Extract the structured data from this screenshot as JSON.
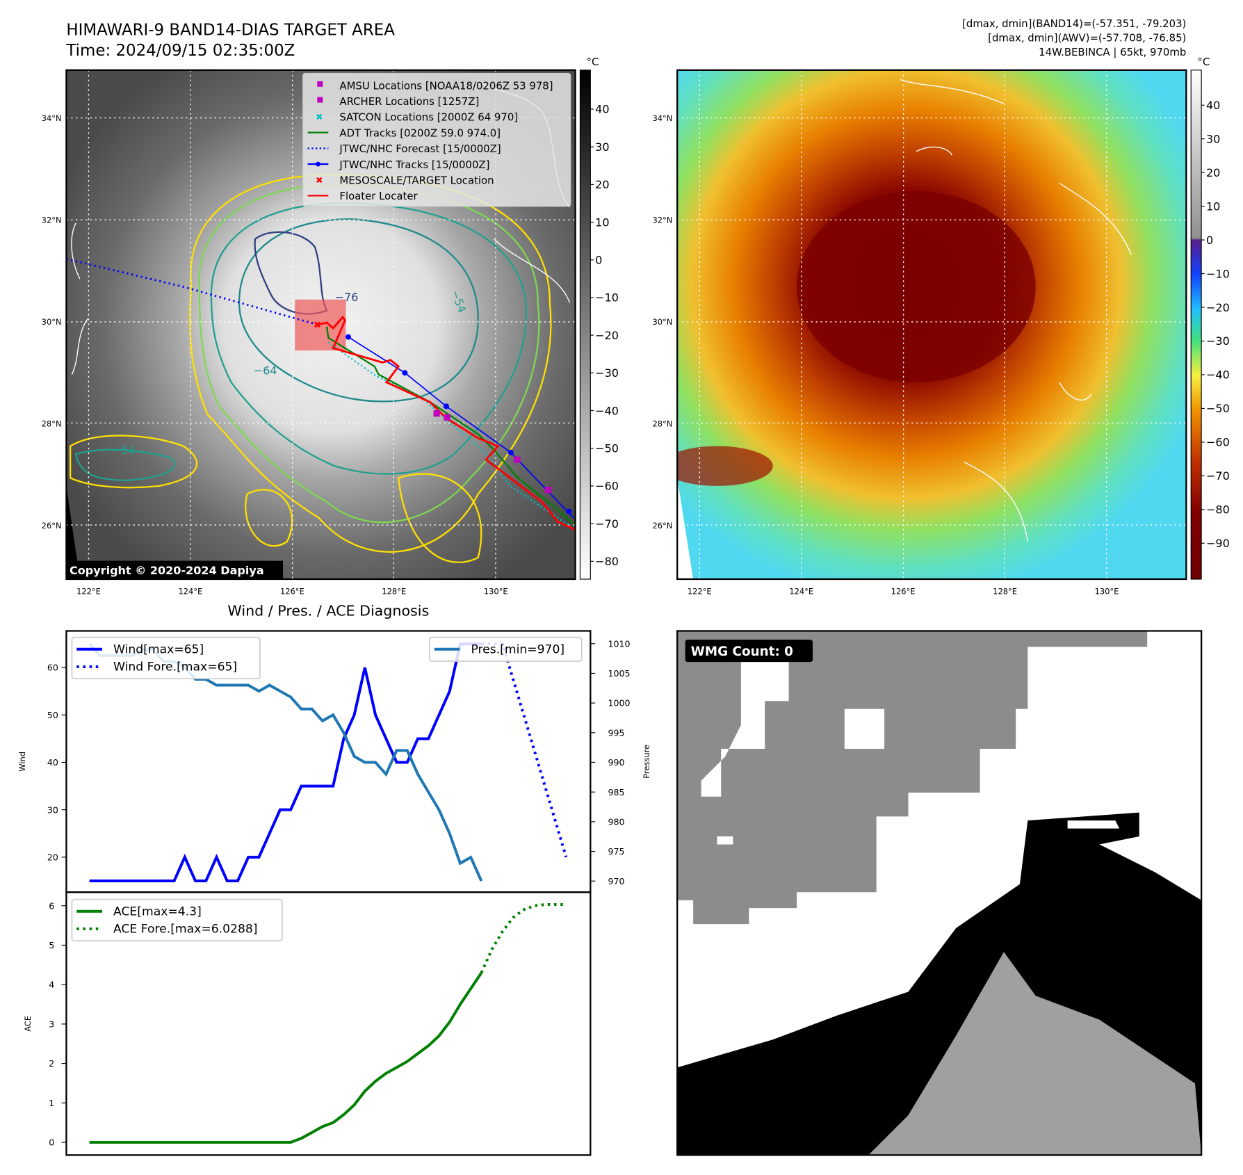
{
  "header": {
    "title": "HIMAWARI-9 BAND14-DIAS TARGET AREA",
    "time": "Time: 2024/09/15 02:35:00Z",
    "stats_band14": "[dmax, dmin](BAND14)=(-57.351, -79.203)",
    "stats_awv": "[dmax, dmin](AWV)=(-57.708, -76.85)",
    "storm": "14W.BEBINCA | 65kt, 970mb"
  },
  "maps": {
    "lat_labels": [
      "34°N",
      "32°N",
      "30°N",
      "28°N",
      "26°N"
    ],
    "lon_labels": [
      "122°E",
      "124°E",
      "126°E",
      "128°E",
      "130°E"
    ],
    "unit": "°C",
    "left_colorbar_ticks": [
      "40",
      "30",
      "20",
      "10",
      "0",
      "−10",
      "−20",
      "−30",
      "−40",
      "−50",
      "−60",
      "−70",
      "−80"
    ],
    "right_colorbar_ticks": [
      "40",
      "30",
      "20",
      "10",
      "0",
      "−10",
      "−20",
      "−30",
      "−40",
      "−50",
      "−60",
      "−70",
      "−80",
      "−90"
    ],
    "copyright": "Copyright © 2020-2024 Dapiya",
    "contour_labels": [
      "−76",
      "−64",
      "−54",
      "−54"
    ],
    "legend": [
      {
        "label": "AMSU Locations [NOAA18/0206Z 53 978]",
        "color": "#c000c0",
        "marker": "square"
      },
      {
        "label": "ARCHER Locations [1257Z]",
        "color": "#c000c0",
        "marker": "square"
      },
      {
        "label": "SATCON Locations [2000Z 64 970]",
        "color": "#00c0c0",
        "marker": "x"
      },
      {
        "label": "ADT Tracks [0200Z 59.0 974.0]",
        "color": "#008000",
        "marker": "line"
      },
      {
        "label": "JTWC/NHC Forecast [15/0000Z]",
        "color": "#0000ff",
        "marker": "dotted"
      },
      {
        "label": "JTWC/NHC Tracks [15/0000Z]",
        "color": "#0000ff",
        "marker": "line-dot"
      },
      {
        "label": "MESOSCALE/TARGET Location",
        "color": "#ff0000",
        "marker": "x"
      },
      {
        "label": "Floater Locater",
        "color": "#ff0000",
        "marker": "line"
      }
    ]
  },
  "wmg": {
    "label": "WMG Count: 0"
  },
  "chart_data": [
    {
      "type": "line",
      "title": "Wind / Pres. / ACE Diagnosis",
      "ylabel": "Wind",
      "y2label": "Pressure",
      "ylim": [
        12.7,
        67.5
      ],
      "y2lim": [
        968.2,
        1012
      ],
      "yticks": [
        20,
        30,
        40,
        50,
        60
      ],
      "y2ticks": [
        970,
        975,
        980,
        985,
        990,
        995,
        1000,
        1005,
        1010
      ],
      "series": [
        {
          "name": "Wind[max=65]",
          "color": "#0000ff",
          "style": "solid",
          "x": [
            0,
            1,
            2,
            3,
            4,
            5,
            6,
            7,
            8,
            9,
            10,
            11,
            12,
            13,
            14,
            15,
            16,
            17,
            18,
            19,
            20,
            21,
            22,
            23,
            24,
            25,
            26,
            27,
            28,
            29,
            30,
            31,
            32,
            33,
            34,
            35,
            36,
            37
          ],
          "values": [
            15,
            15,
            15,
            15,
            15,
            15,
            15,
            15,
            15,
            20,
            15,
            15,
            20,
            15,
            15,
            20,
            20,
            25,
            30,
            30,
            35,
            35,
            35,
            35,
            45,
            50,
            60,
            50,
            45,
            40,
            40,
            45,
            45,
            50,
            55,
            65,
            65,
            65
          ]
        },
        {
          "name": "Wind Fore.[max=65]",
          "color": "#0000ff",
          "style": "dotted",
          "x": [
            37,
            39,
            45
          ],
          "values": [
            65,
            65,
            20
          ]
        },
        {
          "name": "Pres.[min=970]",
          "color": "#1f77b4",
          "style": "solid",
          "axis": "right",
          "x": [
            0,
            1,
            2,
            3,
            4,
            5,
            6,
            7,
            8,
            9,
            10,
            11,
            12,
            13,
            14,
            15,
            16,
            17,
            18,
            19,
            20,
            21,
            22,
            23,
            24,
            25,
            26,
            27,
            28,
            29,
            30,
            31,
            32,
            33,
            34,
            35,
            36,
            37
          ],
          "values": [
            1010,
            1008,
            1008,
            1008,
            1008,
            1009,
            1009,
            1007,
            1007,
            1006,
            1004,
            1004,
            1003,
            1003,
            1003,
            1003,
            1002,
            1003,
            1002,
            1001,
            999,
            999,
            997,
            998,
            995,
            991,
            990,
            990,
            988,
            992,
            992,
            988,
            985,
            982,
            978,
            973,
            974,
            970
          ]
        }
      ]
    },
    {
      "type": "line",
      "ylabel": "ACE",
      "ylim": [
        -0.3,
        6.3
      ],
      "yticks": [
        0,
        1,
        2,
        3,
        4,
        5,
        6
      ],
      "series": [
        {
          "name": "ACE[max=4.3]",
          "color": "#008000",
          "style": "solid",
          "x": [
            0,
            19,
            20,
            21,
            22,
            23,
            24,
            25,
            26,
            27,
            28,
            29,
            30,
            31,
            32,
            33,
            34,
            35,
            36,
            37
          ],
          "values": [
            0,
            0,
            0.1,
            0.25,
            0.4,
            0.5,
            0.7,
            0.95,
            1.3,
            1.55,
            1.75,
            1.9,
            2.05,
            2.25,
            2.45,
            2.7,
            3.05,
            3.5,
            3.9,
            4.3
          ]
        },
        {
          "name": "ACE Fore.[max=6.0288]",
          "color": "#008000",
          "style": "dotted",
          "x": [
            37,
            38,
            39,
            40,
            41,
            42,
            43,
            45
          ],
          "values": [
            4.3,
            4.9,
            5.35,
            5.7,
            5.9,
            6.0,
            6.03,
            6.03
          ]
        }
      ]
    }
  ]
}
